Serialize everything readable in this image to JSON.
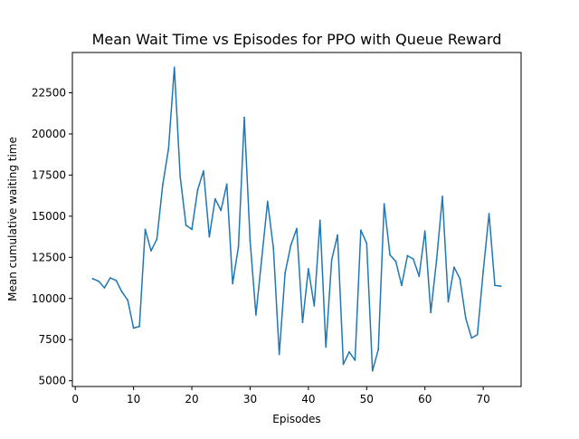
{
  "chart_data": {
    "type": "line",
    "title": "Mean Wait Time vs Episodes for PPO with Queue Reward",
    "xlabel": "Episodes",
    "ylabel": "Mean cumulative waiting time",
    "xlim": [
      -0.5,
      76.5
    ],
    "ylim": [
      4650,
      24950
    ],
    "xticks": [
      0,
      10,
      20,
      30,
      40,
      50,
      60,
      70
    ],
    "yticks": [
      5000,
      7500,
      10000,
      12500,
      15000,
      17500,
      20000,
      22500
    ],
    "grid": false,
    "series": [
      {
        "color": "#1f77b4",
        "x": [
          3,
          4,
          5,
          6,
          7,
          8,
          9,
          10,
          11,
          12,
          13,
          14,
          15,
          16,
          17,
          18,
          19,
          20,
          21,
          22,
          23,
          24,
          25,
          26,
          27,
          28,
          29,
          30,
          31,
          32,
          33,
          34,
          35,
          36,
          37,
          38,
          39,
          40,
          41,
          42,
          43,
          44,
          45,
          46,
          47,
          48,
          49,
          50,
          51,
          52,
          53,
          54,
          55,
          56,
          57,
          58,
          59,
          60,
          61,
          62,
          63,
          64,
          65,
          66,
          67,
          68,
          69,
          70,
          71,
          72,
          73
        ],
        "values": [
          11200,
          11050,
          10650,
          11250,
          11100,
          10400,
          9900,
          8200,
          8300,
          14200,
          12900,
          13600,
          16900,
          19100,
          24050,
          17400,
          14450,
          14200,
          16600,
          17750,
          13750,
          16050,
          15350,
          16950,
          10900,
          13150,
          21000,
          13500,
          9000,
          12450,
          15900,
          13050,
          6600,
          11550,
          13250,
          14250,
          8550,
          11800,
          9550,
          14750,
          7050,
          12350,
          13850,
          6000,
          6750,
          6250,
          14150,
          13350,
          5600,
          6900,
          15750,
          12650,
          12250,
          10800,
          12600,
          12400,
          11350,
          14100,
          9150,
          12350,
          16200,
          9800,
          11900,
          11200,
          8800,
          7600,
          7800,
          11650,
          15150,
          10800,
          10750
        ]
      }
    ]
  }
}
